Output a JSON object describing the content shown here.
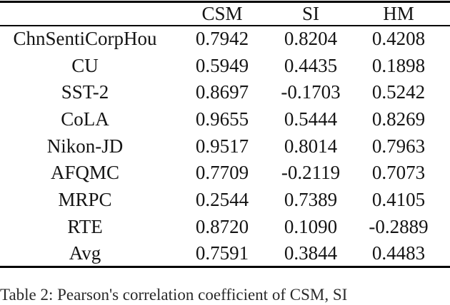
{
  "table": {
    "columns": [
      "CSM",
      "SI",
      "HM"
    ],
    "rows": [
      {
        "label": "ChnSentiCorpHou",
        "csm": "0.7942",
        "si": "0.8204",
        "hm": "0.4208"
      },
      {
        "label": "CU",
        "csm": "0.5949",
        "si": "0.4435",
        "hm": "0.1898"
      },
      {
        "label": "SST-2",
        "csm": "0.8697",
        "si": "-0.1703",
        "hm": "0.5242"
      },
      {
        "label": "CoLA",
        "csm": "0.9655",
        "si": "0.5444",
        "hm": "0.8269"
      },
      {
        "label": "Nikon-JD",
        "csm": "0.9517",
        "si": "0.8014",
        "hm": "0.7963"
      },
      {
        "label": "AFQMC",
        "csm": "0.7709",
        "si": "-0.2119",
        "hm": "0.7073"
      },
      {
        "label": "MRPC",
        "csm": "0.2544",
        "si": "0.7389",
        "hm": "0.4105"
      },
      {
        "label": "RTE",
        "csm": "0.8720",
        "si": "0.1090",
        "hm": "-0.2889"
      },
      {
        "label": "Avg",
        "csm": "0.7591",
        "si": "0.3844",
        "hm": "0.4483"
      }
    ]
  },
  "caption": {
    "text": "Table 2: Pearson's correlation coefficient of CSM, SI"
  },
  "colors": {
    "background": "#ffffff",
    "text": "#141414",
    "rule": "#000000"
  }
}
